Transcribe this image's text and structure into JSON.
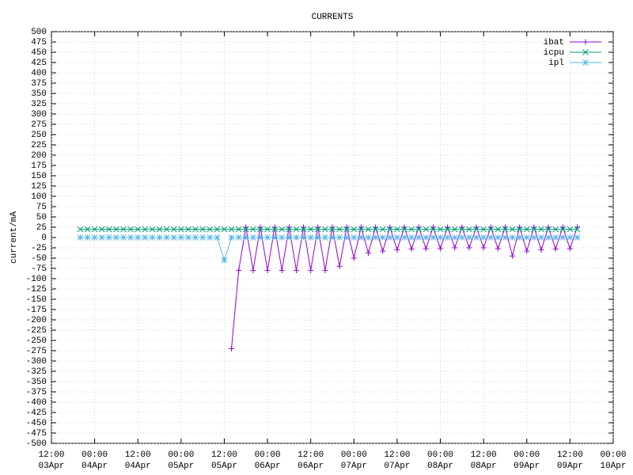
{
  "chart_data": {
    "type": "line",
    "title": "CURRENTS",
    "y_label": "current/mA",
    "grid": true,
    "legend": "top-right",
    "xlim": [
      "03Apr 12:00",
      "10Apr 00:00"
    ],
    "ylim": [
      -500,
      500
    ],
    "xticks": [
      {
        "value": "03Apr 12:00",
        "label": {
          "time": "12:00",
          "date": "03Apr"
        }
      },
      {
        "value": "04Apr 00:00",
        "label": {
          "time": "00:00",
          "date": "04Apr"
        }
      },
      {
        "value": "04Apr 12:00",
        "label": {
          "time": "12:00",
          "date": "04Apr"
        }
      },
      {
        "value": "05Apr 00:00",
        "label": {
          "time": "00:00",
          "date": "05Apr"
        }
      },
      {
        "value": "05Apr 12:00",
        "label": {
          "time": "12:00",
          "date": "05Apr"
        }
      },
      {
        "value": "06Apr 00:00",
        "label": {
          "time": "00:00",
          "date": "06Apr"
        }
      },
      {
        "value": "06Apr 12:00",
        "label": {
          "time": "12:00",
          "date": "06Apr"
        }
      },
      {
        "value": "07Apr 00:00",
        "label": {
          "time": "00:00",
          "date": "07Apr"
        }
      },
      {
        "value": "07Apr 12:00",
        "label": {
          "time": "12:00",
          "date": "07Apr"
        }
      },
      {
        "value": "08Apr 00:00",
        "label": {
          "time": "00:00",
          "date": "08Apr"
        }
      },
      {
        "value": "08Apr 12:00",
        "label": {
          "time": "12:00",
          "date": "08Apr"
        }
      },
      {
        "value": "09Apr 00:00",
        "label": {
          "time": "00:00",
          "date": "09Apr"
        }
      },
      {
        "value": "09Apr 12:00",
        "label": {
          "time": "12:00",
          "date": "09Apr"
        }
      },
      {
        "value": "10Apr 00:00",
        "label": {
          "time": "00:00",
          "date": "10Apr"
        }
      }
    ],
    "yticks": [
      -500,
      -475,
      -450,
      -425,
      -400,
      -375,
      -350,
      -325,
      -300,
      -275,
      -250,
      -225,
      -200,
      -175,
      -150,
      -125,
      -100,
      -75,
      -50,
      -25,
      0,
      25,
      50,
      75,
      100,
      125,
      150,
      175,
      200,
      225,
      250,
      275,
      300,
      325,
      350,
      375,
      400,
      425,
      450,
      475,
      500
    ],
    "x": [
      "03Apr 20:00",
      "03Apr 22:00",
      "04Apr 00:00",
      "04Apr 02:00",
      "04Apr 04:00",
      "04Apr 06:00",
      "04Apr 08:00",
      "04Apr 10:00",
      "04Apr 12:00",
      "04Apr 14:00",
      "04Apr 16:00",
      "04Apr 18:00",
      "04Apr 20:00",
      "04Apr 22:00",
      "05Apr 00:00",
      "05Apr 02:00",
      "05Apr 04:00",
      "05Apr 06:00",
      "05Apr 08:00",
      "05Apr 10:00",
      "05Apr 12:00",
      "05Apr 14:00",
      "05Apr 16:00",
      "05Apr 18:00",
      "05Apr 20:00",
      "05Apr 22:00",
      "06Apr 00:00",
      "06Apr 02:00",
      "06Apr 04:00",
      "06Apr 06:00",
      "06Apr 08:00",
      "06Apr 10:00",
      "06Apr 12:00",
      "06Apr 14:00",
      "06Apr 16:00",
      "06Apr 18:00",
      "06Apr 20:00",
      "06Apr 22:00",
      "07Apr 00:00",
      "07Apr 02:00",
      "07Apr 04:00",
      "07Apr 06:00",
      "07Apr 08:00",
      "07Apr 10:00",
      "07Apr 12:00",
      "07Apr 14:00",
      "07Apr 16:00",
      "07Apr 18:00",
      "07Apr 20:00",
      "07Apr 22:00",
      "08Apr 00:00",
      "08Apr 02:00",
      "08Apr 04:00",
      "08Apr 06:00",
      "08Apr 08:00",
      "08Apr 10:00",
      "08Apr 12:00",
      "08Apr 14:00",
      "08Apr 16:00",
      "08Apr 18:00",
      "08Apr 20:00",
      "08Apr 22:00",
      "09Apr 00:00",
      "09Apr 02:00",
      "09Apr 04:00",
      "09Apr 06:00",
      "09Apr 08:00",
      "09Apr 10:00",
      "09Apr 12:00",
      "09Apr 14:00"
    ],
    "series": [
      {
        "name": "ibat",
        "color": "#9400d3",
        "marker": "plus",
        "values": [
          null,
          null,
          null,
          null,
          null,
          null,
          null,
          null,
          null,
          null,
          null,
          null,
          null,
          null,
          null,
          null,
          null,
          null,
          null,
          null,
          null,
          -270,
          -80,
          25,
          -80,
          25,
          -80,
          25,
          -80,
          25,
          -80,
          25,
          -80,
          25,
          -80,
          25,
          -70,
          25,
          -50,
          25,
          -38,
          25,
          -33,
          25,
          -30,
          25,
          -28,
          25,
          -27,
          25,
          -27,
          25,
          -25,
          25,
          -25,
          25,
          -25,
          25,
          -27,
          25,
          -45,
          25,
          -33,
          25,
          -30,
          25,
          -28,
          25,
          -27,
          25
        ]
      },
      {
        "name": "icpu",
        "color": "#009e73",
        "marker": "cross",
        "values": [
          20,
          20,
          20,
          20,
          20,
          20,
          20,
          20,
          20,
          20,
          20,
          20,
          20,
          20,
          20,
          20,
          20,
          20,
          20,
          20,
          20,
          20,
          20,
          20,
          20,
          20,
          20,
          20,
          20,
          20,
          20,
          20,
          20,
          20,
          20,
          20,
          20,
          20,
          20,
          20,
          20,
          20,
          20,
          20,
          20,
          20,
          20,
          20,
          20,
          20,
          20,
          20,
          20,
          20,
          20,
          20,
          20,
          20,
          20,
          20,
          20,
          20,
          20,
          20,
          20,
          20,
          20,
          20,
          20,
          20
        ]
      },
      {
        "name": "ipl",
        "color": "#56b4e9",
        "marker": "star",
        "values": [
          0,
          0,
          0,
          0,
          0,
          0,
          0,
          0,
          0,
          0,
          0,
          0,
          0,
          0,
          0,
          0,
          0,
          0,
          0,
          0,
          -55,
          0,
          0,
          0,
          0,
          0,
          0,
          0,
          0,
          0,
          0,
          0,
          0,
          0,
          0,
          0,
          0,
          0,
          0,
          0,
          0,
          0,
          0,
          0,
          0,
          0,
          0,
          0,
          0,
          0,
          0,
          0,
          0,
          0,
          0,
          0,
          0,
          0,
          0,
          0,
          0,
          0,
          0,
          0,
          0,
          0,
          0,
          0,
          0,
          0
        ]
      }
    ]
  }
}
